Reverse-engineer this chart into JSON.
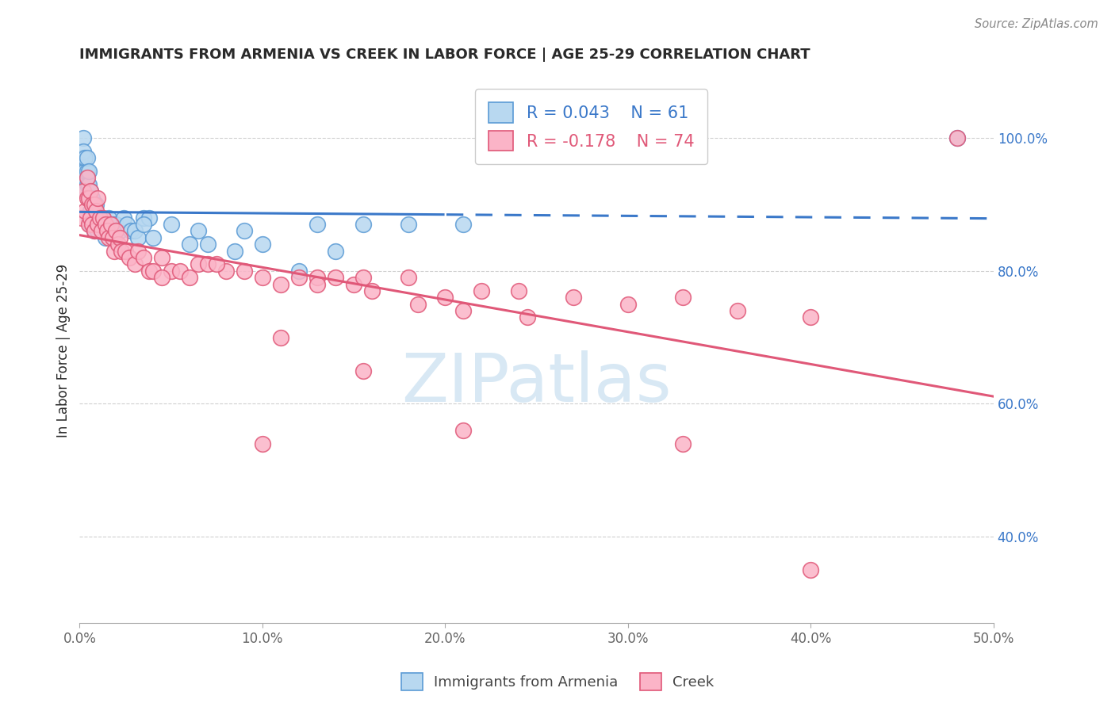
{
  "title": "IMMIGRANTS FROM ARMENIA VS CREEK IN LABOR FORCE | AGE 25-29 CORRELATION CHART",
  "source": "Source: ZipAtlas.com",
  "ylabel": "In Labor Force | Age 25-29",
  "legend_label1": "Immigrants from Armenia",
  "legend_label2": "Creek",
  "r1": 0.043,
  "n1": 61,
  "r2": -0.178,
  "n2": 74,
  "color1_fill": "#b8d8f0",
  "color1_edge": "#5b9bd5",
  "color2_fill": "#fbb4c7",
  "color2_edge": "#e05878",
  "xmin": 0.0,
  "xmax": 0.5,
  "ymin": 0.27,
  "ymax": 1.09,
  "xticks": [
    0.0,
    0.1,
    0.2,
    0.3,
    0.4,
    0.5
  ],
  "xtick_labels": [
    "0.0%",
    "10.0%",
    "20.0%",
    "30.0%",
    "40.0%",
    "50.0%"
  ],
  "yticks": [
    0.4,
    0.6,
    0.8,
    1.0
  ],
  "ytick_labels": [
    "40.0%",
    "60.0%",
    "80.0%",
    "100.0%"
  ],
  "blue_x": [
    0.001,
    0.001,
    0.002,
    0.002,
    0.002,
    0.003,
    0.003,
    0.003,
    0.004,
    0.004,
    0.004,
    0.005,
    0.005,
    0.005,
    0.005,
    0.006,
    0.006,
    0.006,
    0.007,
    0.007,
    0.008,
    0.008,
    0.009,
    0.009,
    0.01,
    0.01,
    0.011,
    0.012,
    0.012,
    0.013,
    0.014,
    0.015,
    0.016,
    0.017,
    0.018,
    0.019,
    0.02,
    0.022,
    0.024,
    0.026,
    0.028,
    0.03,
    0.032,
    0.035,
    0.038,
    0.04,
    0.05,
    0.06,
    0.07,
    0.085,
    0.1,
    0.12,
    0.14,
    0.155,
    0.18,
    0.21,
    0.035,
    0.065,
    0.09,
    0.13,
    0.48
  ],
  "blue_y": [
    0.93,
    0.96,
    1.0,
    0.97,
    0.98,
    0.92,
    0.95,
    0.97,
    0.93,
    0.95,
    0.97,
    0.88,
    0.91,
    0.93,
    0.95,
    0.87,
    0.89,
    0.92,
    0.88,
    0.91,
    0.86,
    0.89,
    0.87,
    0.9,
    0.86,
    0.88,
    0.87,
    0.86,
    0.88,
    0.87,
    0.85,
    0.86,
    0.88,
    0.86,
    0.87,
    0.85,
    0.87,
    0.86,
    0.88,
    0.87,
    0.86,
    0.86,
    0.85,
    0.88,
    0.88,
    0.85,
    0.87,
    0.84,
    0.84,
    0.83,
    0.84,
    0.8,
    0.83,
    0.87,
    0.87,
    0.87,
    0.87,
    0.86,
    0.86,
    0.87,
    1.0
  ],
  "pink_x": [
    0.001,
    0.002,
    0.003,
    0.004,
    0.004,
    0.005,
    0.005,
    0.006,
    0.006,
    0.007,
    0.007,
    0.008,
    0.008,
    0.009,
    0.01,
    0.01,
    0.011,
    0.012,
    0.013,
    0.014,
    0.015,
    0.016,
    0.017,
    0.018,
    0.019,
    0.02,
    0.021,
    0.022,
    0.023,
    0.025,
    0.027,
    0.03,
    0.032,
    0.035,
    0.038,
    0.04,
    0.045,
    0.05,
    0.055,
    0.06,
    0.065,
    0.07,
    0.08,
    0.09,
    0.1,
    0.11,
    0.12,
    0.13,
    0.14,
    0.15,
    0.16,
    0.18,
    0.2,
    0.22,
    0.24,
    0.27,
    0.3,
    0.33,
    0.36,
    0.4,
    0.045,
    0.075,
    0.1,
    0.13,
    0.155,
    0.185,
    0.21,
    0.245,
    0.11,
    0.155,
    0.21,
    0.33,
    0.4,
    0.48
  ],
  "pink_y": [
    0.88,
    0.92,
    0.89,
    0.91,
    0.94,
    0.87,
    0.91,
    0.88,
    0.92,
    0.87,
    0.9,
    0.86,
    0.9,
    0.89,
    0.87,
    0.91,
    0.88,
    0.86,
    0.88,
    0.87,
    0.86,
    0.85,
    0.87,
    0.85,
    0.83,
    0.86,
    0.84,
    0.85,
    0.83,
    0.83,
    0.82,
    0.81,
    0.83,
    0.82,
    0.8,
    0.8,
    0.82,
    0.8,
    0.8,
    0.79,
    0.81,
    0.81,
    0.8,
    0.8,
    0.79,
    0.78,
    0.79,
    0.79,
    0.79,
    0.78,
    0.77,
    0.79,
    0.76,
    0.77,
    0.77,
    0.76,
    0.75,
    0.76,
    0.74,
    0.73,
    0.79,
    0.81,
    0.54,
    0.78,
    0.79,
    0.75,
    0.74,
    0.73,
    0.7,
    0.65,
    0.56,
    0.54,
    0.35,
    1.0
  ],
  "trendline_color1": "#3a78c9",
  "trendline_color2": "#e05878",
  "background_color": "#ffffff",
  "grid_color": "#d0d0d0",
  "title_color": "#2a2a2a",
  "axis_color": "#666666",
  "right_axis_color": "#3a78c9",
  "trend_split": 0.2,
  "watermark_text": "ZIPatlas",
  "watermark_color": "#c8dff0"
}
